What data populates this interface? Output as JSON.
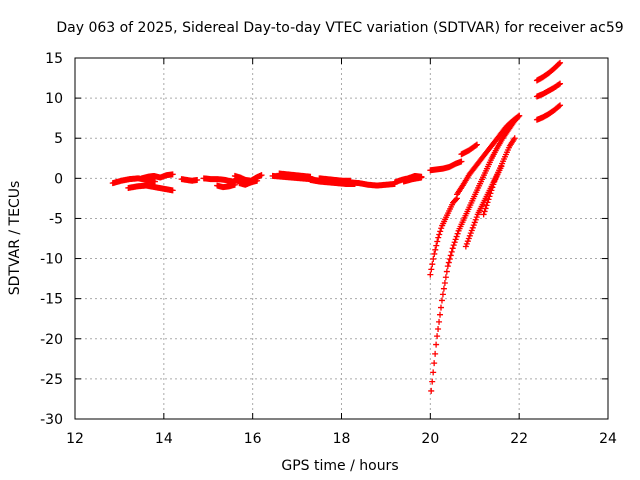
{
  "chart_data": {
    "type": "scatter",
    "title": "Day 063 of 2025, Sidereal Day-to-day VTEC variation (SDTVAR) for receiver ac59",
    "xlabel": "GPS time / hours",
    "ylabel": "SDTVAR / TECUs",
    "xlim": [
      12,
      24
    ],
    "ylim": [
      -30,
      15
    ],
    "xticks": [
      "12",
      "14",
      "16",
      "18",
      "20",
      "22",
      "24"
    ],
    "yticks": [
      "-30",
      "-25",
      "-20",
      "-15",
      "-10",
      "-5",
      "0",
      "5",
      "10",
      "15"
    ],
    "grid": true,
    "marker": "+",
    "color": "#ff0000",
    "segments": [
      {
        "name": "early-a",
        "x0": 12.85,
        "x1": 13.8,
        "y": [
          -0.6,
          -0.3,
          -0.1,
          0.0,
          -0.2,
          -0.4
        ]
      },
      {
        "name": "early-b",
        "x0": 13.2,
        "x1": 14.2,
        "y": [
          -1.2,
          -1.0,
          -0.9,
          -1.1,
          -1.3,
          -1.5
        ]
      },
      {
        "name": "early-c",
        "x0": 13.5,
        "x1": 14.2,
        "y": [
          0.0,
          0.2,
          0.3,
          0.1,
          0.4,
          0.5
        ]
      },
      {
        "name": "a2",
        "x0": 14.4,
        "x1": 14.75,
        "y": [
          -0.1,
          -0.2,
          -0.3,
          -0.2
        ]
      },
      {
        "name": "a3",
        "x0": 14.9,
        "x1": 15.7,
        "y": [
          0.0,
          -0.1,
          -0.1,
          -0.2,
          -0.4,
          -0.2
        ]
      },
      {
        "name": "a3b",
        "x0": 15.2,
        "x1": 15.6,
        "y": [
          -0.9,
          -1.1,
          -1.0,
          -0.8
        ]
      },
      {
        "name": "a4",
        "x0": 15.6,
        "x1": 16.2,
        "y": [
          0.3,
          0.1,
          -0.2,
          -0.3,
          0.1,
          0.4
        ]
      },
      {
        "name": "a4b",
        "x0": 15.7,
        "x1": 16.1,
        "y": [
          -0.6,
          -0.8,
          -0.5,
          -0.3
        ]
      },
      {
        "name": "b1",
        "x0": 16.45,
        "x1": 17.5,
        "y": [
          0.3,
          0.2,
          0.1,
          0.0,
          -0.1,
          -0.3
        ]
      },
      {
        "name": "b1b",
        "x0": 16.6,
        "x1": 17.3,
        "y": [
          0.6,
          0.5,
          0.4,
          0.3,
          0.2
        ]
      },
      {
        "name": "b2",
        "x0": 17.3,
        "x1": 18.3,
        "y": [
          -0.2,
          -0.4,
          -0.5,
          -0.6,
          -0.7,
          -0.7
        ]
      },
      {
        "name": "b2b",
        "x0": 17.5,
        "x1": 18.2,
        "y": [
          0.0,
          -0.1,
          -0.2,
          -0.3,
          -0.3
        ]
      },
      {
        "name": "b3",
        "x0": 18.2,
        "x1": 19.2,
        "y": [
          -0.5,
          -0.6,
          -0.8,
          -0.9,
          -0.8,
          -0.7
        ]
      },
      {
        "name": "b4",
        "x0": 19.2,
        "x1": 19.8,
        "y": [
          -0.5,
          -0.2,
          0.0,
          0.3,
          0.2
        ]
      },
      {
        "name": "b4b",
        "x0": 19.4,
        "x1": 19.8,
        "y": [
          -0.4,
          -0.1,
          0.1
        ]
      },
      {
        "name": "c1",
        "x0": 20.0,
        "x1": 20.7,
        "y": [
          1.0,
          1.1,
          1.2,
          1.4,
          1.8,
          2.1
        ]
      },
      {
        "name": "c1b",
        "x0": 20.7,
        "x1": 21.05,
        "y": [
          3.0,
          3.5,
          4.2
        ]
      },
      {
        "name": "d1",
        "x0": 20.02,
        "x1": 22.0,
        "y": [
          -26.5,
          -20.0,
          -15.0,
          -11.0,
          -8.5,
          -6.5,
          -5.0,
          -3.5,
          -2.0,
          -0.5,
          1.0,
          2.5,
          3.8,
          5.0,
          6.0,
          7.0,
          7.8
        ]
      },
      {
        "name": "d2",
        "x0": 20.0,
        "x1": 20.6,
        "y": [
          -12.0,
          -9.5,
          -7.5,
          -6.0,
          -5.0,
          -4.0,
          -3.0,
          -2.5
        ]
      },
      {
        "name": "d3",
        "x0": 20.6,
        "x1": 22.0,
        "y": [
          -2.0,
          -0.8,
          0.5,
          1.5,
          2.5,
          3.5,
          4.5,
          5.5,
          6.5,
          7.2,
          7.8
        ]
      },
      {
        "name": "d4",
        "x0": 20.8,
        "x1": 21.6,
        "y": [
          -8.5,
          -6.5,
          -4.5,
          -3.0,
          -1.5,
          0.0,
          1.5
        ]
      },
      {
        "name": "d5",
        "x0": 21.2,
        "x1": 21.9,
        "y": [
          -4.5,
          -2.5,
          -0.5,
          1.0,
          2.5,
          4.0,
          5.0
        ]
      },
      {
        "name": "e1",
        "x0": 22.4,
        "x1": 22.92,
        "y": [
          12.2,
          12.6,
          13.1,
          13.7,
          14.4
        ]
      },
      {
        "name": "e2",
        "x0": 22.4,
        "x1": 22.92,
        "y": [
          10.2,
          10.5,
          10.9,
          11.3,
          11.8
        ]
      },
      {
        "name": "e3",
        "x0": 22.4,
        "x1": 22.92,
        "y": [
          7.3,
          7.6,
          8.0,
          8.5,
          9.1
        ]
      }
    ]
  }
}
